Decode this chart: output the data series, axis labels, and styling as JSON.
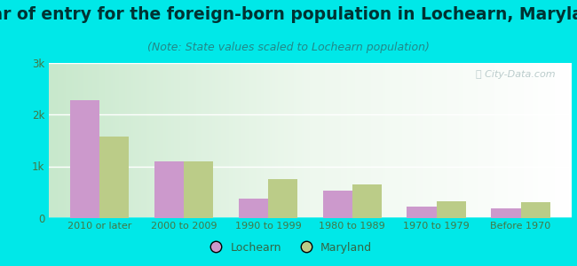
{
  "title": "Year of entry for the foreign-born population in Lochearn, Maryland",
  "subtitle": "(Note: State values scaled to Lochearn population)",
  "categories": [
    "2010 or later",
    "2000 to 2009",
    "1990 to 1999",
    "1980 to 1989",
    "1970 to 1979",
    "Before 1970"
  ],
  "lochearn_values": [
    2270,
    1100,
    370,
    530,
    220,
    190
  ],
  "maryland_values": [
    1580,
    1100,
    750,
    650,
    330,
    310
  ],
  "lochearn_color": "#cc99cc",
  "maryland_color": "#bbcc88",
  "bg_outer": "#00e8e8",
  "bg_chart_top": "#f5faf5",
  "bg_chart_bottom": "#d8edda",
  "ylim": [
    0,
    3000
  ],
  "yticks": [
    0,
    1000,
    2000,
    3000
  ],
  "ytick_labels": [
    "0",
    "1k",
    "2k",
    "3k"
  ],
  "bar_width": 0.35,
  "legend_lochearn": "Lochearn",
  "legend_maryland": "Maryland",
  "title_fontsize": 13.5,
  "subtitle_fontsize": 9
}
